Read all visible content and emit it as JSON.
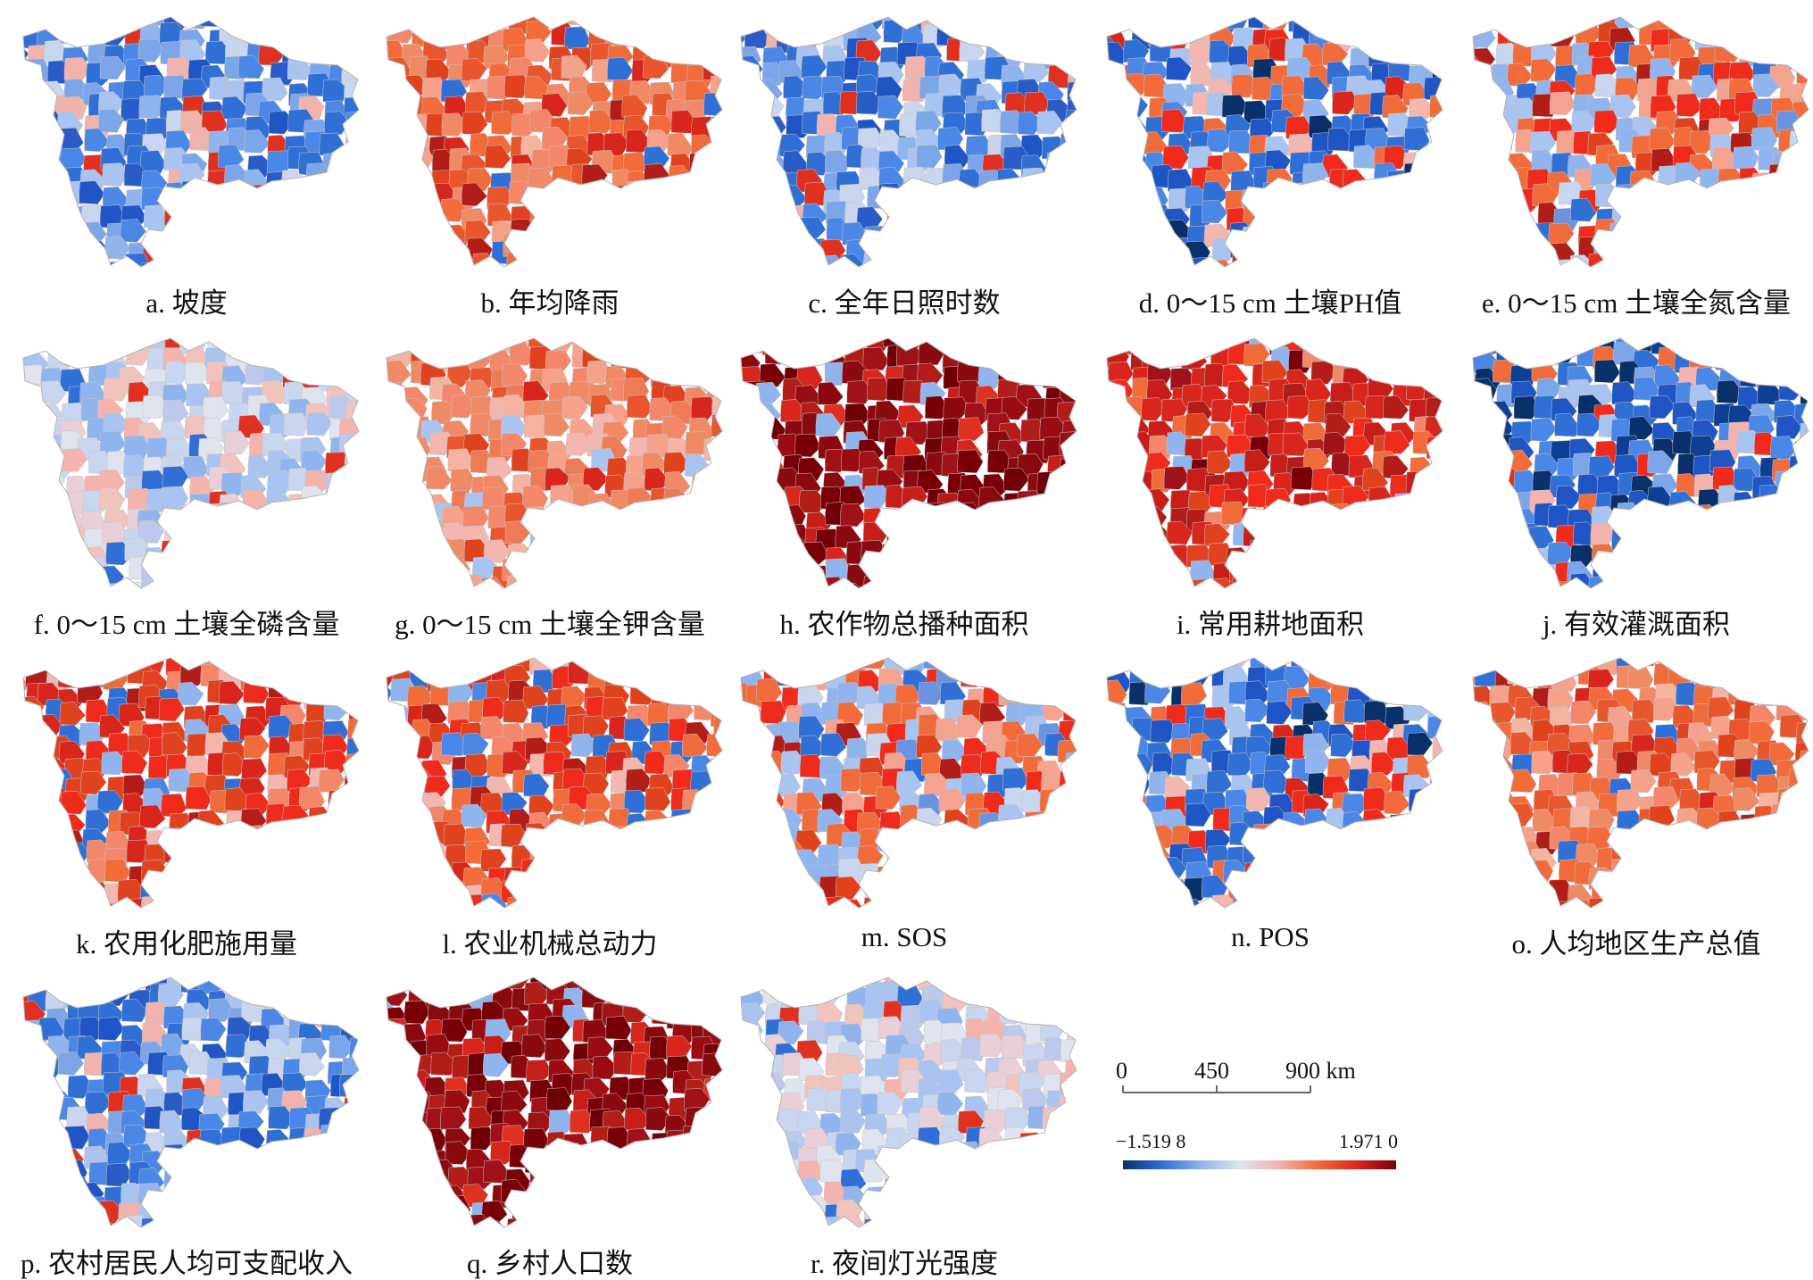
{
  "panels": [
    {
      "id": "a",
      "caption": "a. 坡度",
      "palette": "blue"
    },
    {
      "id": "b",
      "caption": "b. 年均降雨",
      "palette": "orange"
    },
    {
      "id": "c",
      "caption": "c. 全年日照时数",
      "palette": "blue"
    },
    {
      "id": "d",
      "caption": "d. 0～15 cm 土壤PH值",
      "palette": "mixed-blue"
    },
    {
      "id": "e",
      "caption": "e. 0～15 cm 土壤全氮含量",
      "palette": "mixed"
    },
    {
      "id": "f",
      "caption": "f. 0～15 cm 土壤全磷含量",
      "palette": "light"
    },
    {
      "id": "g",
      "caption": "g. 0～15 cm 土壤全钾含量",
      "palette": "salmon"
    },
    {
      "id": "h",
      "caption": "h. 农作物总播种面积",
      "palette": "darkred"
    },
    {
      "id": "i",
      "caption": "i. 常用耕地面积",
      "palette": "red"
    },
    {
      "id": "j",
      "caption": "j. 有效灌溉面积",
      "palette": "deepblue"
    },
    {
      "id": "k",
      "caption": "k. 农用化肥施用量",
      "palette": "redmix"
    },
    {
      "id": "l",
      "caption": "l. 农业机械总动力",
      "palette": "redmix"
    },
    {
      "id": "m",
      "caption": "m. SOS",
      "palette": "mixed"
    },
    {
      "id": "n",
      "caption": "n. POS",
      "palette": "mixed-blue"
    },
    {
      "id": "o",
      "caption": "o. 人均地区生产总值",
      "palette": "orange"
    },
    {
      "id": "p",
      "caption": "p. 农村居民人均可支配收入",
      "palette": "blue"
    },
    {
      "id": "q",
      "caption": "q. 乡村人口数",
      "palette": "darkred"
    },
    {
      "id": "r",
      "caption": "r. 夜间灯光强度",
      "palette": "light"
    }
  ],
  "scale_bar": {
    "ticks": [
      "0",
      "450",
      "900 km"
    ]
  },
  "color_legend": {
    "min_label": "−1.519 8",
    "max_label": "1.971 0",
    "colors": [
      "#08306b",
      "#2f6fd6",
      "#8fb4ee",
      "#dfe3ee",
      "#f4b3ad",
      "#f26b3a",
      "#d9261c",
      "#7a0008"
    ]
  }
}
